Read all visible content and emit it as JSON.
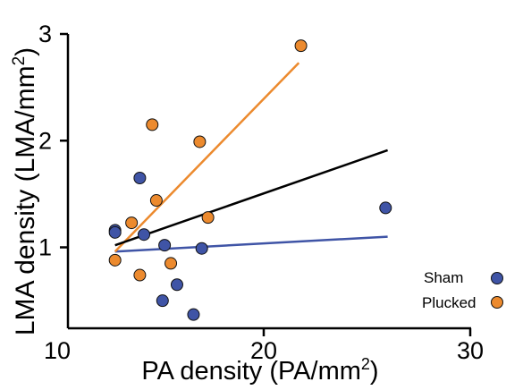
{
  "chart_data": {
    "type": "scatter",
    "xlabel": "PA density (PA/mm",
    "xlabel_sup": "2",
    "xlabel_end": ")",
    "ylabel": "LMA density (LMA/mm",
    "ylabel_sup": "2",
    "ylabel_end": ")",
    "xlim": [
      10,
      30
    ],
    "ylim": [
      0.3,
      3
    ],
    "xticks": [
      10,
      20,
      30
    ],
    "yticks": [
      1,
      2,
      3
    ],
    "grid": false,
    "legend_position": "bottom-right",
    "series": [
      {
        "name": "Sham",
        "color": "#3f54a6",
        "points": [
          {
            "x": 12.8,
            "y": 1.16
          },
          {
            "x": 12.8,
            "y": 1.14
          },
          {
            "x": 14.0,
            "y": 1.65
          },
          {
            "x": 14.2,
            "y": 1.12
          },
          {
            "x": 15.2,
            "y": 1.02
          },
          {
            "x": 17.0,
            "y": 0.99
          },
          {
            "x": 15.8,
            "y": 0.65
          },
          {
            "x": 15.1,
            "y": 0.5
          },
          {
            "x": 16.6,
            "y": 0.37
          },
          {
            "x": 25.9,
            "y": 1.37
          }
        ],
        "trend": {
          "x": [
            12.8,
            26.0
          ],
          "y": [
            0.96,
            1.1
          ]
        }
      },
      {
        "name": "Plucked",
        "color": "#ec8a2e",
        "points": [
          {
            "x": 12.8,
            "y": 0.88
          },
          {
            "x": 13.6,
            "y": 1.23
          },
          {
            "x": 14.0,
            "y": 0.74
          },
          {
            "x": 14.6,
            "y": 2.15
          },
          {
            "x": 14.8,
            "y": 1.44
          },
          {
            "x": 15.5,
            "y": 0.85
          },
          {
            "x": 16.9,
            "y": 1.99
          },
          {
            "x": 17.3,
            "y": 1.28
          },
          {
            "x": 21.8,
            "y": 2.89
          }
        ],
        "trend": {
          "x": [
            12.8,
            21.7
          ],
          "y": [
            0.96,
            2.73
          ]
        }
      }
    ],
    "combined_trend": {
      "color": "#000000",
      "x": [
        12.8,
        26.0
      ],
      "y": [
        1.02,
        1.91
      ]
    }
  }
}
